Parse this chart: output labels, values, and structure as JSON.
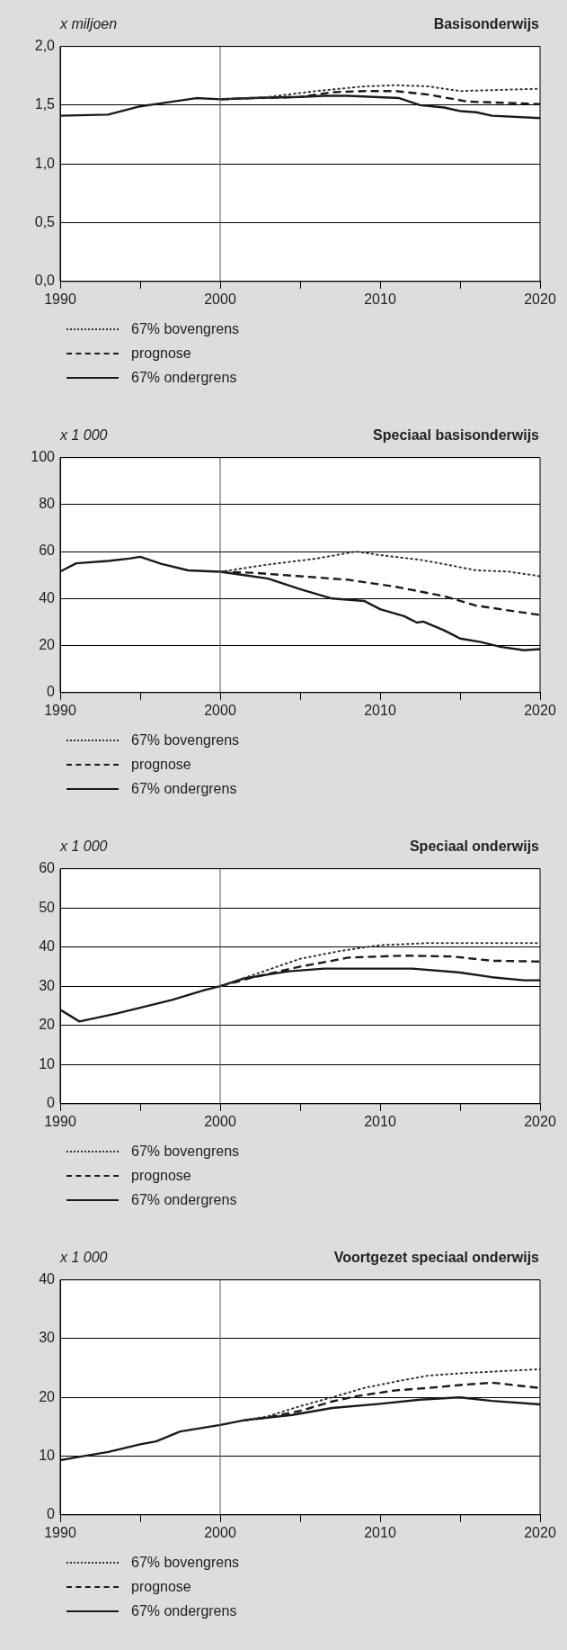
{
  "chart_data": [
    {
      "type": "line",
      "title": "Basisonderwijs",
      "ylabel": "x miljoen",
      "xlim": [
        1990,
        2020
      ],
      "xticks": [
        1990,
        {
          "value": 1995,
          "label": null
        },
        2000,
        {
          "value": 2005,
          "label": null
        },
        2010,
        {
          "value": 2015,
          "label": null
        },
        2020
      ],
      "ylim": [
        0,
        2
      ],
      "yticks": [
        {
          "value": 0,
          "label": "0,0"
        },
        {
          "value": 0.5,
          "label": "0,5"
        },
        {
          "value": 1,
          "label": "1,0"
        },
        {
          "value": 1.5,
          "label": "1,5"
        },
        {
          "value": 2,
          "label": "2,0"
        }
      ],
      "grid": "y",
      "legend": "bottom",
      "marker": "none",
      "ref_lines": [
        {
          "axis": "x",
          "value": 2000,
          "color": "#555555"
        }
      ],
      "series": [
        {
          "name": "67% bovengrens",
          "color": "#333333",
          "line_style": "dotted",
          "x": [
            2000,
            2002,
            2003,
            2006,
            2009,
            2011,
            2013,
            2015,
            2020
          ],
          "values": [
            1.55,
            1.56,
            1.57,
            1.62,
            1.66,
            1.67,
            1.66,
            1.62,
            1.64
          ]
        },
        {
          "name": "prognose",
          "color": "#1a1a1a",
          "line_style": "dashed",
          "x": [
            2000,
            2002,
            2005,
            2007,
            2009,
            2011,
            2013,
            2015.5,
            2020
          ],
          "values": [
            1.55,
            1.56,
            1.57,
            1.61,
            1.62,
            1.62,
            1.59,
            1.53,
            1.51
          ]
        },
        {
          "name": "67% ondergrens",
          "color": "#1a1a1a",
          "line_style": "solid",
          "x": [
            1990,
            1993,
            1995,
            1996,
            1998.5,
            2000,
            2002,
            2005,
            2006.5,
            2008,
            2011.2,
            2012.5,
            2014,
            2015,
            2016,
            2017,
            2020
          ],
          "values": [
            1.41,
            1.42,
            1.49,
            1.51,
            1.56,
            1.55,
            1.56,
            1.57,
            1.58,
            1.58,
            1.56,
            1.5,
            1.48,
            1.45,
            1.44,
            1.41,
            1.39
          ]
        }
      ]
    },
    {
      "type": "line",
      "title": "Speciaal basisonderwijs",
      "ylabel": "x 1 000",
      "xlim": [
        1990,
        2020
      ],
      "xticks": [
        1990,
        {
          "value": 1995,
          "label": null
        },
        2000,
        {
          "value": 2005,
          "label": null
        },
        2010,
        {
          "value": 2015,
          "label": null
        },
        2020
      ],
      "ylim": [
        0,
        100
      ],
      "yticks": [
        0,
        20,
        40,
        60,
        80,
        100
      ],
      "grid": "y",
      "legend": "bottom",
      "marker": "none",
      "ref_lines": [
        {
          "axis": "x",
          "value": 2000,
          "color": "#555555"
        }
      ],
      "series": [
        {
          "name": "67% bovengrens",
          "color": "#333333",
          "line_style": "dotted",
          "x": [
            2000,
            2003,
            2006,
            2008.5,
            2010,
            2012.5,
            2014.5,
            2016,
            2018,
            2020
          ],
          "values": [
            51.4,
            54.5,
            57,
            60,
            58.5,
            56.5,
            54,
            52,
            51.5,
            49.5
          ]
        },
        {
          "name": "prognose",
          "color": "#1a1a1a",
          "line_style": "dashed",
          "x": [
            2000,
            2002,
            2005,
            2008,
            2011,
            2014,
            2016,
            2020
          ],
          "values": [
            51.4,
            51,
            49.5,
            48,
            45,
            41,
            37,
            33
          ]
        },
        {
          "name": "67% ondergrens",
          "color": "#1a1a1a",
          "line_style": "solid",
          "x": [
            1990,
            1991,
            1993,
            1994.3,
            1995,
            1996.3,
            1998,
            2000,
            2001.5,
            2003,
            2005,
            2007,
            2009,
            2010,
            2011.5,
            2012.3,
            2012.7,
            2014,
            2015,
            2016.3,
            2017.5,
            2019,
            2020
          ],
          "values": [
            51.5,
            55,
            56,
            57,
            57.8,
            54.8,
            52,
            51.4,
            50,
            48.5,
            44,
            40,
            39,
            35.5,
            32.5,
            29.8,
            30.2,
            26.5,
            23,
            21.5,
            19.5,
            18,
            18.5
          ]
        }
      ]
    },
    {
      "type": "line",
      "title": "Speciaal onderwijs",
      "ylabel": "x 1 000",
      "xlim": [
        1990,
        2020
      ],
      "xticks": [
        1990,
        {
          "value": 1995,
          "label": null
        },
        2000,
        {
          "value": 2005,
          "label": null
        },
        2010,
        {
          "value": 2015,
          "label": null
        },
        2020
      ],
      "ylim": [
        0,
        60
      ],
      "yticks": [
        0,
        10,
        20,
        30,
        40,
        50,
        60
      ],
      "grid": "y",
      "legend": "bottom",
      "marker": "none",
      "ref_lines": [
        {
          "axis": "x",
          "value": 2000,
          "color": "#555555"
        }
      ],
      "series": [
        {
          "name": "67% bovengrens",
          "color": "#333333",
          "line_style": "dotted",
          "x": [
            2000,
            2002,
            2005,
            2007.5,
            2010,
            2013,
            2020
          ],
          "values": [
            30,
            32.8,
            37,
            39,
            40.5,
            41,
            41
          ]
        },
        {
          "name": "prognose",
          "color": "#1a1a1a",
          "line_style": "dashed",
          "x": [
            2000,
            2002,
            2005,
            2007,
            2008,
            2010,
            2011.5,
            2014.5,
            2017,
            2020
          ],
          "values": [
            30,
            32.2,
            35,
            36.5,
            37.3,
            37.6,
            37.8,
            37.6,
            36.5,
            36.3
          ]
        },
        {
          "name": "67% ondergrens",
          "color": "#1a1a1a",
          "line_style": "solid",
          "x": [
            1990,
            1991.2,
            1993.5,
            1995,
            1997,
            1999,
            2000,
            2001.5,
            2003,
            2004.3,
            2006.5,
            2012,
            2015,
            2017,
            2019,
            2020
          ],
          "values": [
            24,
            21,
            23,
            24.5,
            26.5,
            29,
            30,
            32,
            33,
            33.8,
            34.5,
            34.5,
            33.5,
            32.3,
            31.5,
            31.5
          ]
        }
      ]
    },
    {
      "type": "line",
      "title": "Voortgezet speciaal onderwijs",
      "ylabel": "x 1 000",
      "xlim": [
        1990,
        2020
      ],
      "xticks": [
        1990,
        {
          "value": 1995,
          "label": null
        },
        2000,
        {
          "value": 2005,
          "label": null
        },
        2010,
        {
          "value": 2015,
          "label": null
        },
        2020
      ],
      "ylim": [
        0,
        40
      ],
      "yticks": [
        0,
        10,
        20,
        30,
        40
      ],
      "grid": "y",
      "legend": "bottom",
      "marker": "none",
      "ref_lines": [
        {
          "axis": "x",
          "value": 2000,
          "color": "#555555"
        }
      ],
      "series": [
        {
          "name": "67% bovengrens",
          "color": "#333333",
          "line_style": "dotted",
          "x": [
            2001.5,
            2003,
            2005,
            2007,
            2009,
            2011,
            2013,
            2015,
            2020
          ],
          "values": [
            16.1,
            16.8,
            18.5,
            20,
            21.6,
            22.7,
            23.7,
            24.1,
            24.8
          ]
        },
        {
          "name": "prognose",
          "color": "#1a1a1a",
          "line_style": "dashed",
          "x": [
            2001.5,
            2003,
            2005,
            2007,
            2008.5,
            2011,
            2013,
            2015,
            2017,
            2020
          ],
          "values": [
            16.1,
            16.6,
            17.7,
            19.3,
            20.2,
            21.2,
            21.6,
            22.1,
            22.5,
            21.6
          ]
        },
        {
          "name": "67% ondergrens",
          "color": "#1a1a1a",
          "line_style": "solid",
          "x": [
            1990,
            1991,
            1993,
            1995,
            1996,
            1997.5,
            2000,
            2001.5,
            2004.5,
            2007,
            2010,
            2012.5,
            2015,
            2017,
            2020
          ],
          "values": [
            9.3,
            9.8,
            10.7,
            12,
            12.5,
            14.2,
            15.3,
            16.1,
            17,
            18.2,
            18.9,
            19.6,
            20,
            19.4,
            18.8
          ]
        }
      ]
    }
  ]
}
